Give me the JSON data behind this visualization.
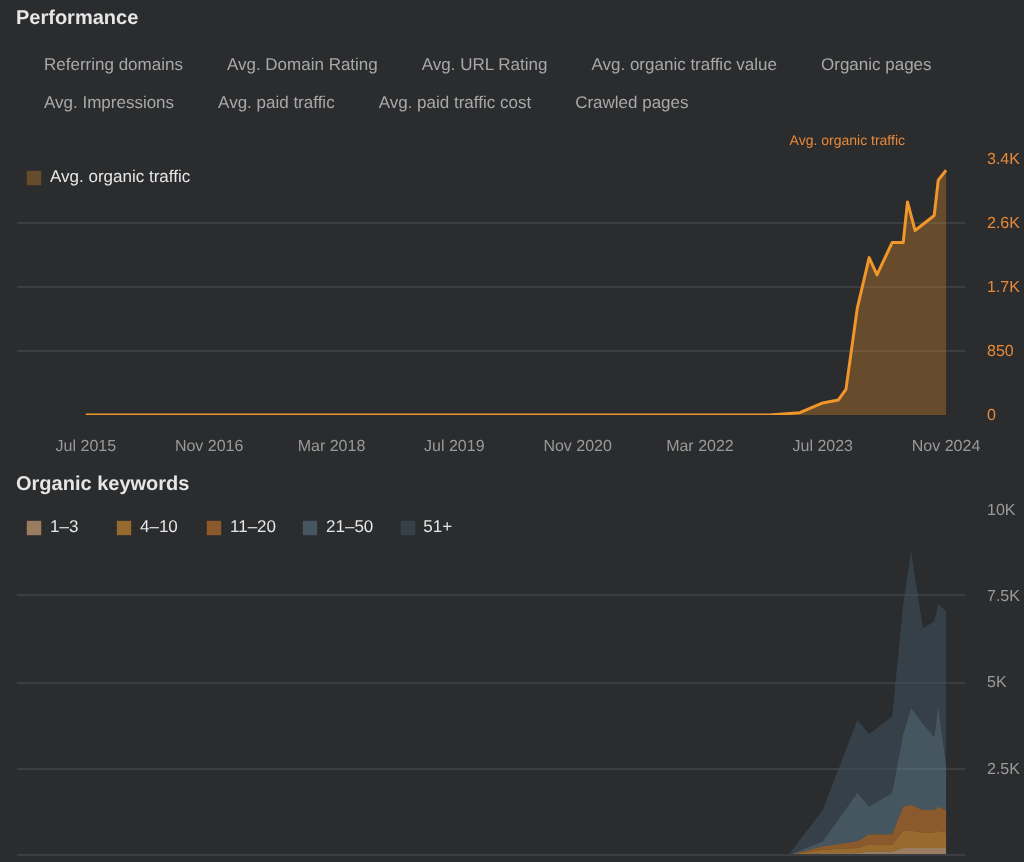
{
  "chart_data": [
    {
      "type": "area",
      "title": "Performance",
      "ylabel": "Avg. organic traffic",
      "annotations": [
        "Referring domains",
        "Avg. Domain Rating",
        "Avg. URL Rating",
        "Avg. organic traffic value",
        "Organic pages",
        "Avg. Impressions",
        "Avg. paid traffic",
        "Avg. paid traffic cost",
        "Crawled pages"
      ],
      "x": [
        "2015-07-01",
        "2022-12-01",
        "2023-04-01",
        "2023-07-01",
        "2023-09-01",
        "2023-10-01",
        "2023-11-15",
        "2024-01-01",
        "2024-02-01",
        "2024-04-01",
        "2024-05-15",
        "2024-06-01",
        "2024-07-01",
        "2024-09-15",
        "2024-10-01",
        "2024-11-01"
      ],
      "series": [
        {
          "name": "Avg. organic traffic",
          "color": "#f0962a",
          "values": [
            0,
            0,
            30,
            160,
            200,
            340,
            1420,
            2090,
            1860,
            2290,
            2290,
            2830,
            2450,
            2650,
            3120,
            3250
          ]
        }
      ],
      "xlim": [
        "2014-10-01",
        "2025-01-15"
      ],
      "xticks": [
        {
          "value": "2015-07",
          "label": "Jul 2015"
        },
        {
          "value": "2016-11",
          "label": "Nov 2016"
        },
        {
          "value": "2018-03",
          "label": "Mar 2018"
        },
        {
          "value": "2019-07",
          "label": "Jul 2019"
        },
        {
          "value": "2020-11",
          "label": "Nov 2020"
        },
        {
          "value": "2022-03",
          "label": "Mar 2022"
        },
        {
          "value": "2023-07",
          "label": "Jul 2023"
        },
        {
          "value": "2024-11",
          "label": "Nov 2024"
        }
      ],
      "ylim": [
        0,
        3400
      ],
      "yticks": [
        0,
        850,
        {
          "value": 1700,
          "label": "1.7K"
        },
        {
          "value": 2550,
          "label": "2.6K"
        },
        {
          "value": 3400,
          "label": "3.4K"
        }
      ],
      "grid": "y",
      "legend": "top left"
    },
    {
      "type": "area",
      "stacked": true,
      "title": "Organic keywords",
      "x": [
        "2015-07-01",
        "2023-02-15",
        "2023-07-01",
        "2023-11-15",
        "2024-01-01",
        "2024-04-01",
        "2024-05-15",
        "2024-06-15",
        "2024-08-01",
        "2024-09-15",
        "2024-10-01",
        "2024-11-01"
      ],
      "series": [
        {
          "name": "1–3",
          "color": "#f5c08a",
          "values": [
            0,
            0,
            50,
            50,
            100,
            100,
            200,
            200,
            200,
            200,
            200,
            200
          ]
        },
        {
          "name": "4–10",
          "color": "#f0a030",
          "values": [
            0,
            0,
            100,
            150,
            200,
            200,
            500,
            500,
            450,
            450,
            500,
            450
          ]
        },
        {
          "name": "11–20",
          "color": "#d9822b",
          "values": [
            0,
            0,
            100,
            200,
            300,
            300,
            700,
            750,
            650,
            650,
            700,
            650
          ]
        },
        {
          "name": "21–50",
          "color": "#5d7a8c",
          "values": [
            0,
            0,
            150,
            1400,
            800,
            1200,
            2100,
            2800,
            2500,
            2100,
            2900,
            1300
          ]
        },
        {
          "name": "51+",
          "color": "#3f5260",
          "values": [
            0,
            0,
            900,
            2100,
            2100,
            2200,
            3750,
            4550,
            2750,
            3350,
            2950,
            4450
          ]
        }
      ],
      "xlim": [
        "2014-10-01",
        "2025-01-15"
      ],
      "ylim": [
        0,
        10000
      ],
      "yticks": [
        {
          "value": 2500,
          "label": "2.5K"
        },
        {
          "value": 5000,
          "label": "5K"
        },
        {
          "value": 7500,
          "label": "7.5K"
        },
        {
          "value": 10000,
          "label": "10K"
        }
      ],
      "tick_labels": "y",
      "grid": "y",
      "legend": "top left"
    }
  ]
}
